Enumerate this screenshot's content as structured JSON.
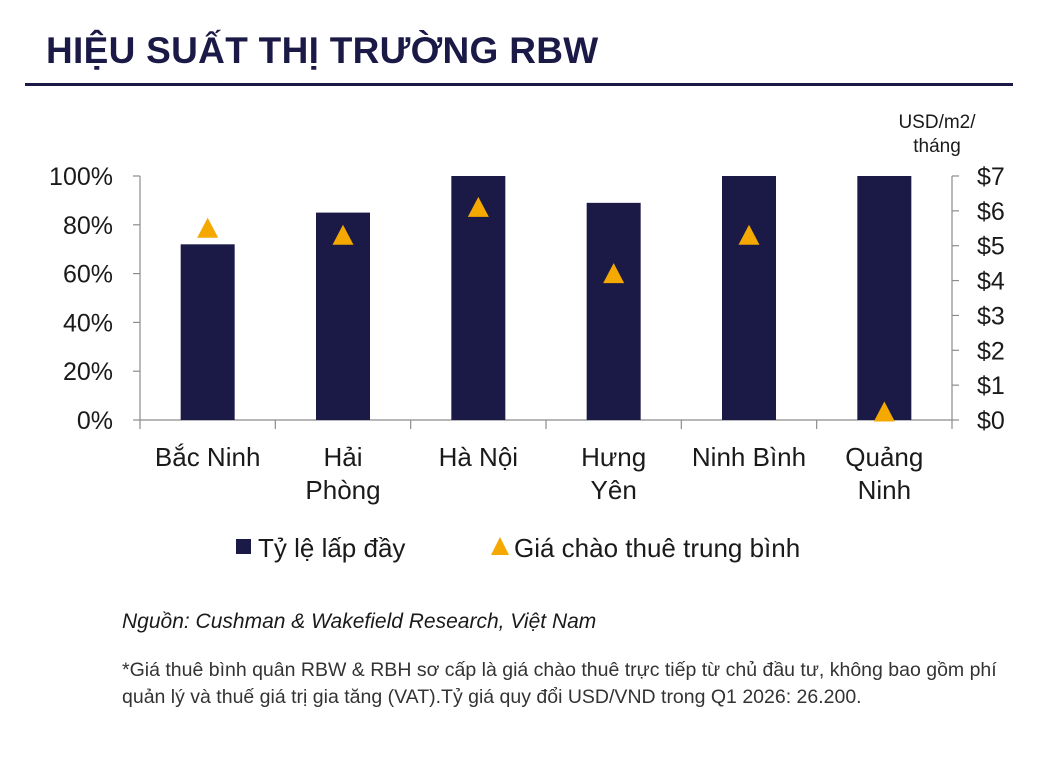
{
  "header": {
    "title": "HIỆU SUẤT THỊ TRƯỜNG RBW"
  },
  "chart_data": {
    "type": "bar",
    "categories": [
      [
        "Bắc Ninh"
      ],
      [
        "Hải",
        "Phòng"
      ],
      [
        "Hà Nội"
      ],
      [
        "Hưng",
        "Yên"
      ],
      [
        "Ninh Bình"
      ],
      [
        "Quảng",
        "Ninh"
      ]
    ],
    "series": [
      {
        "name": "Tỷ lệ lấp đầy",
        "type": "bar",
        "axis": "left",
        "values": [
          72,
          85,
          100,
          89,
          100,
          100
        ],
        "color": "#1b1a47"
      },
      {
        "name": "Giá chào thuê trung bình",
        "type": "scatter",
        "marker": "triangle",
        "axis": "right",
        "values": [
          5.5,
          5.3,
          6.1,
          4.2,
          5.3,
          0
        ],
        "color": "#f5a800"
      }
    ],
    "y_left": {
      "ticks": [
        "0%",
        "20%",
        "40%",
        "60%",
        "80%",
        "100%"
      ],
      "ylim": [
        0,
        100
      ]
    },
    "y_right": {
      "label": [
        "USD/m2/",
        "tháng"
      ],
      "ticks": [
        "$0",
        "$1",
        "$2",
        "$3",
        "$4",
        "$5",
        "$6",
        "$7"
      ],
      "ylim": [
        0,
        7
      ]
    },
    "legend_position": "bottom"
  },
  "footer": {
    "source": "Nguồn: Cushman & Wakefield Research, Việt Nam",
    "note": "*Giá thuê bình quân RBW & RBH sơ cấp là giá chào thuê trực tiếp từ chủ đầu tư, không bao gồm phí quản lý và thuế giá trị gia tăng (VAT).Tỷ giá quy đổi USD/VND trong Q1 2026: 26.200."
  }
}
